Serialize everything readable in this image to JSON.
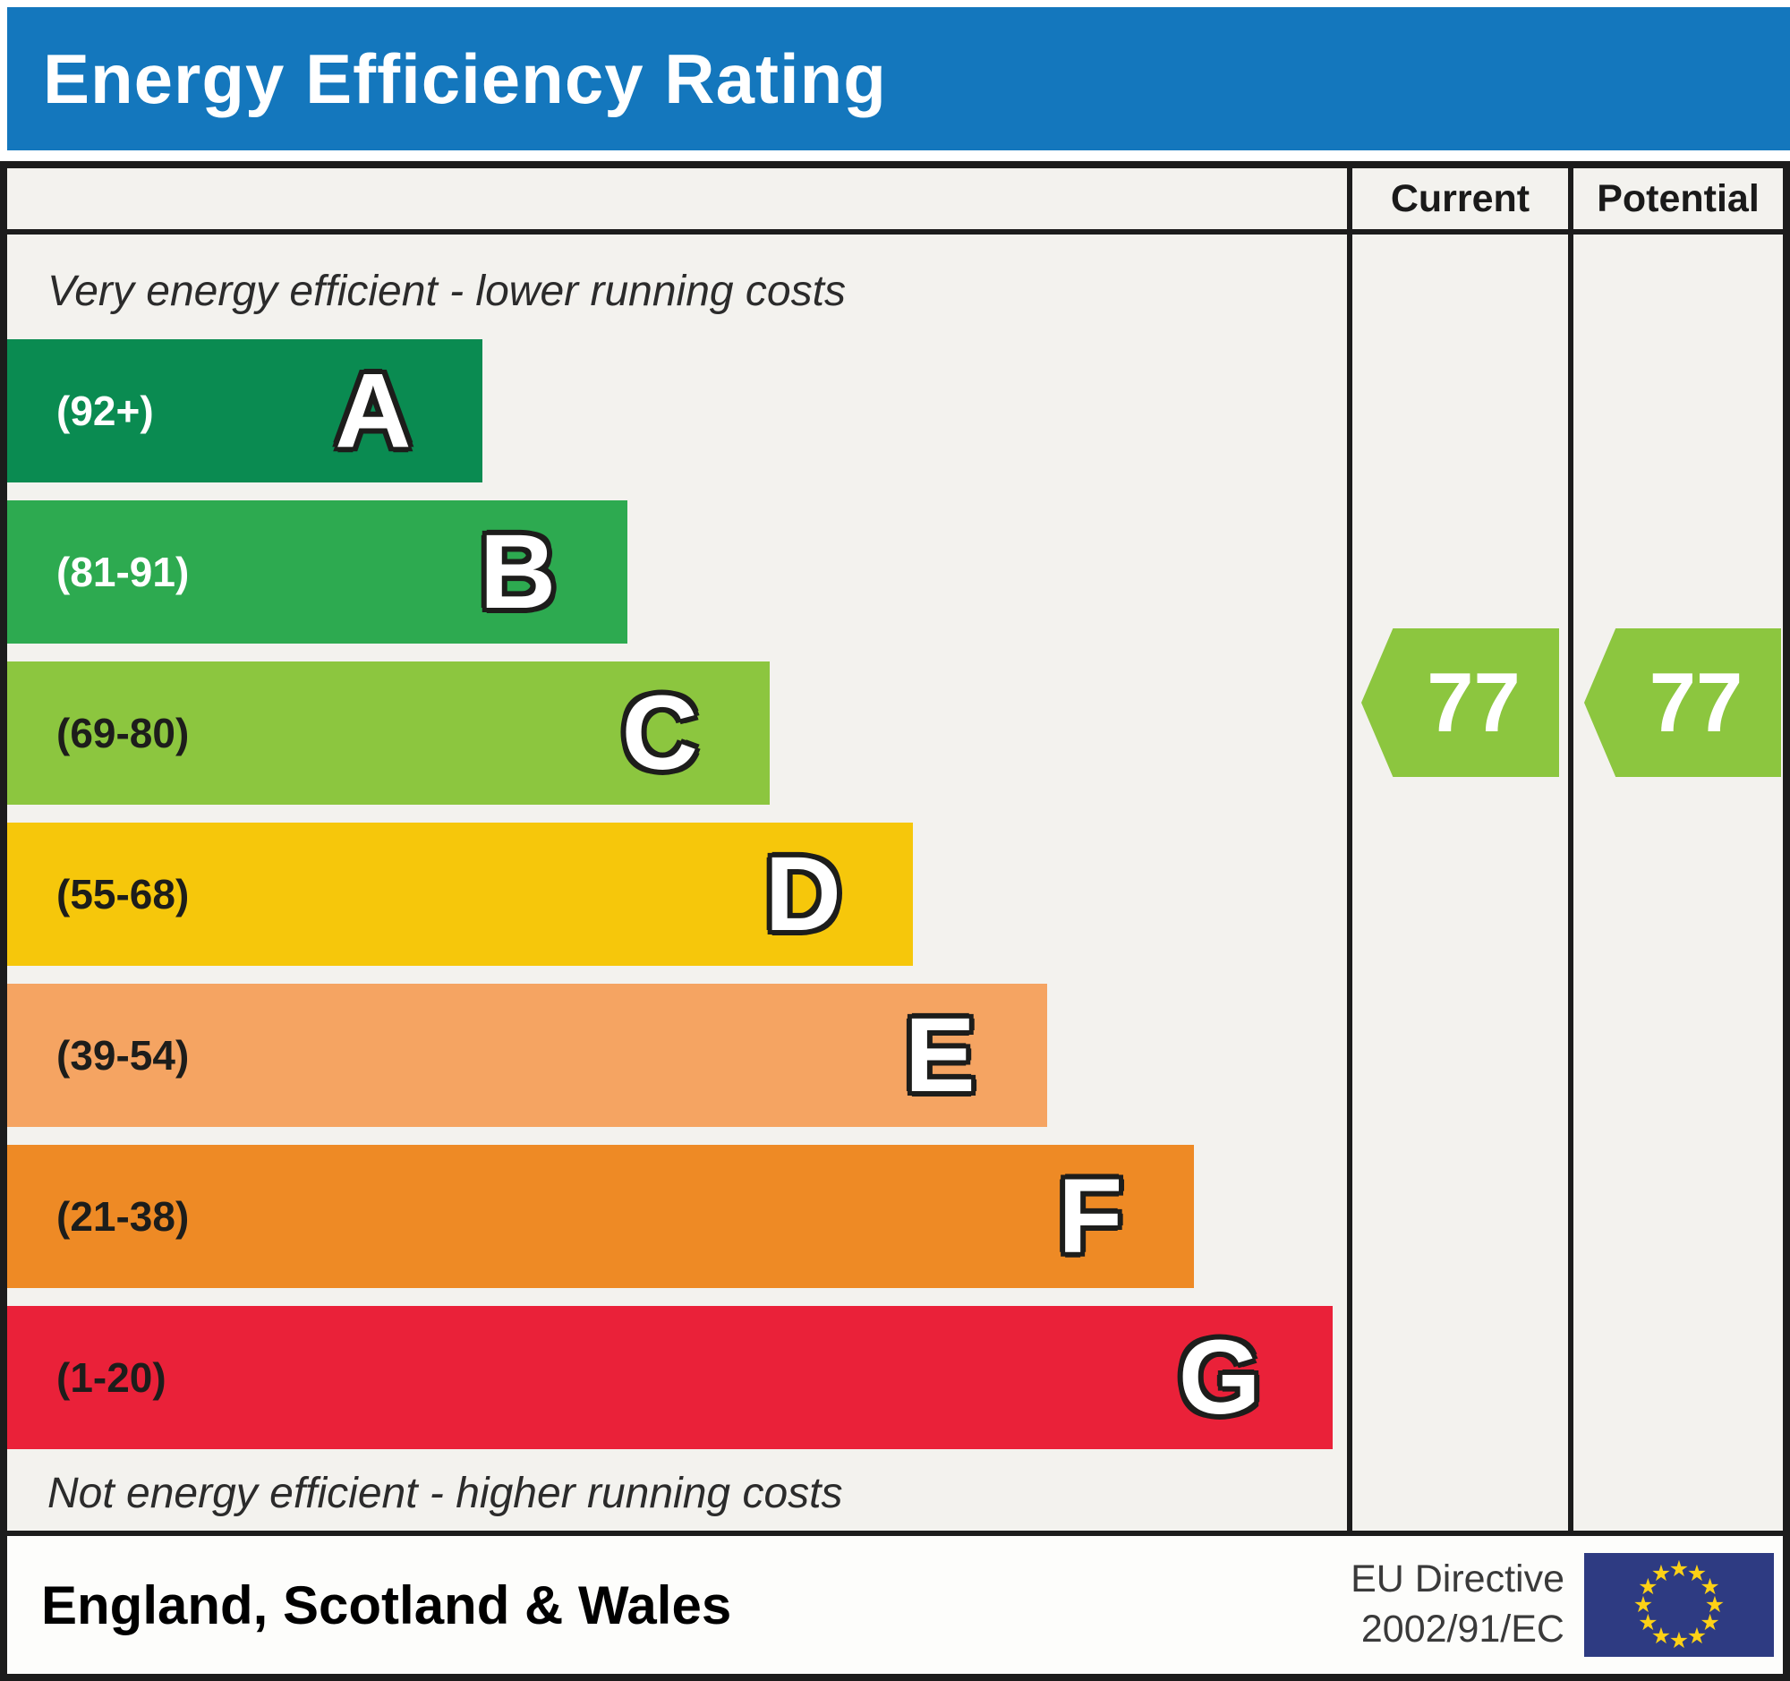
{
  "title": "Energy Efficiency Rating",
  "theme": {
    "title_bg": "#1477bd",
    "title_color": "#ffffff",
    "border_color": "#1c1c1c",
    "chart_bg": "#f3f2ee",
    "footer_bg": "#fdfdfb"
  },
  "columns": {
    "current": "Current",
    "potential": "Potential"
  },
  "captions": {
    "top": "Very energy efficient - lower running costs",
    "bottom": "Not energy efficient - higher running costs"
  },
  "bands": [
    {
      "letter": "A",
      "range": "(92+)",
      "color": "#0a8b51",
      "range_color": "#ffffff",
      "width_pct": 35.5
    },
    {
      "letter": "B",
      "range": "(81-91)",
      "color": "#2daa50",
      "range_color": "#ffffff",
      "width_pct": 46.3
    },
    {
      "letter": "C",
      "range": "(69-80)",
      "color": "#8cc63f",
      "range_color": "#1d1d1b",
      "width_pct": 56.9
    },
    {
      "letter": "D",
      "range": "(55-68)",
      "color": "#f6c70b",
      "range_color": "#1d1d1b",
      "width_pct": 67.6
    },
    {
      "letter": "E",
      "range": "(39-54)",
      "color": "#f5a462",
      "range_color": "#1d1d1b",
      "width_pct": 77.6
    },
    {
      "letter": "F",
      "range": "(21-38)",
      "color": "#ee8a25",
      "range_color": "#1d1d1b",
      "width_pct": 88.6
    },
    {
      "letter": "G",
      "range": "(1-20)",
      "color": "#ea2139",
      "range_color": "#1d1d1b",
      "width_pct": 98.9
    }
  ],
  "ratings": {
    "current": {
      "value": "77",
      "band": "C",
      "color": "#8cc63f"
    },
    "potential": {
      "value": "77",
      "band": "C",
      "color": "#8cc63f"
    }
  },
  "footer": {
    "region": "England, Scotland & Wales",
    "directive_line1": "EU Directive",
    "directive_line2": "2002/91/EC",
    "flag": {
      "bg": "#2e3b82",
      "star_color": "#fdd116",
      "star_glyph": "★"
    }
  },
  "chart_data": {
    "type": "bar",
    "title": "Energy Efficiency Rating",
    "categories": [
      "A",
      "B",
      "C",
      "D",
      "E",
      "F",
      "G"
    ],
    "band_ranges": [
      "92+",
      "81-91",
      "69-80",
      "55-68",
      "39-54",
      "21-38",
      "1-20"
    ],
    "band_colors": [
      "#0a8b51",
      "#2daa50",
      "#8cc63f",
      "#f6c70b",
      "#f5a462",
      "#ee8a25",
      "#ea2139"
    ],
    "band_bar_lengths_pct": [
      35.5,
      46.3,
      56.9,
      67.6,
      77.6,
      88.6,
      98.9
    ],
    "series": [
      {
        "name": "Current",
        "values": [
          77
        ],
        "band": "C"
      },
      {
        "name": "Potential",
        "values": [
          77
        ],
        "band": "C"
      }
    ],
    "region": "England, Scotland & Wales",
    "legend_position": "none",
    "grid": false
  }
}
